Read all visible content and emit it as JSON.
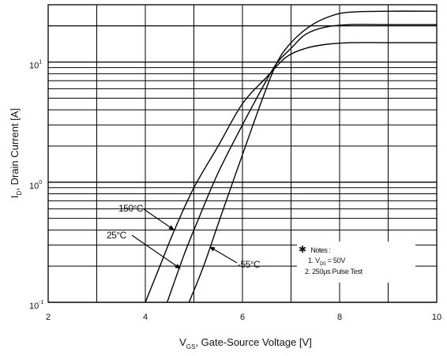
{
  "chart_data": {
    "type": "line",
    "title": "",
    "xlabel": "V",
    "xlabel_sub": "GS",
    "xlabel_rest": ", Gate-Source Voltage [V]",
    "ylabel": "I",
    "ylabel_sub": "D",
    "ylabel_rest": ", Drain Current [A]",
    "xlim": [
      2,
      10
    ],
    "ylim": [
      0.1,
      30
    ],
    "yscale": "log",
    "grid": true,
    "x_ticks": [
      "2",
      "4",
      "6",
      "8",
      "10"
    ],
    "y_ticks": [
      {
        "base": "10",
        "exp": "-1",
        "value": 0.1
      },
      {
        "base": "10",
        "exp": "0",
        "value": 1
      },
      {
        "base": "10",
        "exp": "1",
        "value": 10
      }
    ],
    "series": [
      {
        "name": "150°C",
        "x": [
          4.0,
          4.3,
          4.6,
          5.0,
          5.5,
          6.0,
          6.5,
          6.9,
          7.3,
          7.7,
          8.2,
          9.0,
          10.0
        ],
        "y": [
          0.1,
          0.2,
          0.4,
          0.9,
          2.0,
          4.5,
          7.5,
          11,
          13,
          14,
          14.5,
          14.5,
          14.5
        ]
      },
      {
        "name": "25°C",
        "x": [
          4.45,
          4.8,
          5.1,
          5.5,
          6.0,
          6.4,
          6.7,
          7.0,
          7.3,
          7.7,
          8.2,
          9.0,
          10.0
        ],
        "y": [
          0.1,
          0.25,
          0.5,
          1.2,
          3.0,
          6.0,
          9.7,
          13,
          17,
          19.5,
          20.5,
          20.5,
          20.5
        ]
      },
      {
        "name": "-55°C",
        "x": [
          4.9,
          5.2,
          5.5,
          5.8,
          6.1,
          6.4,
          6.7,
          7.0,
          7.4,
          7.8,
          8.2,
          9.0,
          10.0
        ],
        "y": [
          0.1,
          0.2,
          0.45,
          1.0,
          2.2,
          4.8,
          9.7,
          14.5,
          20,
          24,
          26,
          26.5,
          26.5
        ]
      }
    ],
    "annotations": [
      {
        "text": "150°C",
        "points_to": [
          4.52,
          0.34
        ]
      },
      {
        "text": "25°C",
        "points_to": [
          4.75,
          0.22
        ]
      },
      {
        "text": "-55°C",
        "points_to": [
          5.2,
          0.3
        ]
      }
    ],
    "notes": {
      "star": "✱",
      "title": "Notes :",
      "line1_prefix": "1. V",
      "line1_sub": "DS",
      "line1_suffix": " = 50V",
      "line2": "2. 250μs Pulse Test"
    }
  }
}
